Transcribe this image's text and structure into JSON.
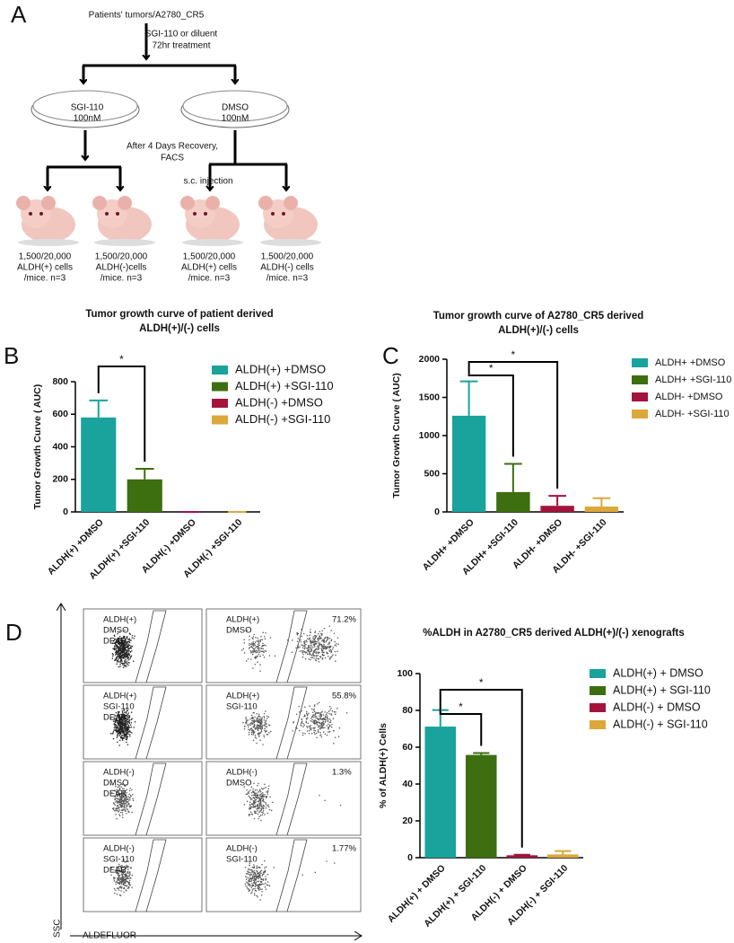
{
  "diagram": {
    "label": "A",
    "source": "Patients' tumors/A2780_CR5",
    "treatment": [
      "SGI-110 or diluent",
      "72hr treatment"
    ],
    "dishes": [
      {
        "drug": "SGI-110",
        "dose": "100nM"
      },
      {
        "drug": "DMSO",
        "dose": "100nM"
      }
    ],
    "recovery": [
      "After 4 Days Recovery,",
      "FACS"
    ],
    "injection": "s.c. injection",
    "mice": [
      [
        "1,500/20,000",
        "ALDH(+) cells",
        "/mice. n=3"
      ],
      [
        "1,500/20,000",
        "ALDH(-)cells",
        "/mice. n=3"
      ],
      [
        "1,500/20,000",
        "ALDH(+) cells",
        "/mice. n=3"
      ],
      [
        "1,500/20,000",
        "ALDH(-) cells",
        "/mice. n=3"
      ]
    ]
  },
  "chart_data": [
    {
      "type": "bar",
      "panel": "B",
      "title": [
        "Tumor growth curve of patient derived",
        "ALDH(+)/(-) cells"
      ],
      "y_label": "Tumor Growth Curve ( AUC)",
      "categories": [
        "ALDH(+) +DMSO",
        "ALDH(+) +SGI-110",
        "ALDH(-) +DMSO",
        "ALDH(-) +SGI-110"
      ],
      "values": [
        580,
        200,
        0,
        0
      ],
      "errors": [
        105,
        65,
        0,
        0
      ],
      "colors": [
        "#19a39c",
        "#3d6e0f",
        "#a4133c",
        "#dba83a"
      ],
      "ylim": [
        0,
        800
      ],
      "yticks": [
        0,
        200,
        400,
        600,
        800
      ],
      "significance": [
        {
          "from": 0,
          "to": 1,
          "label": "*"
        }
      ]
    },
    {
      "type": "bar",
      "panel": "C",
      "title": [
        "Tumor growth curve of A2780_CR5 derived",
        "ALDH(+)/(-) cells"
      ],
      "y_label": "Tumor Growth Curve ( AUC)",
      "categories": [
        "ALDH+ +DMSO",
        "ALDH+ +SGI-110",
        "ALDH- +DMSO",
        "ALDH- +SGI-110"
      ],
      "values": [
        1260,
        260,
        80,
        70
      ],
      "errors": [
        450,
        370,
        130,
        110
      ],
      "colors": [
        "#19a39c",
        "#3d6e0f",
        "#a4133c",
        "#dba83a"
      ],
      "ylim": [
        0,
        2000
      ],
      "yticks": [
        0,
        500,
        1000,
        1500,
        2000
      ],
      "significance": [
        {
          "from": 0,
          "to": 1,
          "label": "*"
        },
        {
          "from": 0,
          "to": 2,
          "label": "*"
        }
      ]
    },
    {
      "type": "bar",
      "title": [
        "%ALDH in A2780_CR5 derived ALDH(+)/(-) xenografts"
      ],
      "y_label": "% of ALDH(+) Cells",
      "categories": [
        "ALDH(+) + DMSO",
        "ALDH(+) + SGI-110",
        "ALDH(-) + DMSO",
        "ALDH(-) + SGI-110"
      ],
      "values": [
        71.2,
        55.8,
        1.3,
        1.77
      ],
      "errors": [
        9,
        1,
        0.3,
        1.8
      ],
      "colors": [
        "#19a39c",
        "#3d6e0f",
        "#a4133c",
        "#dba83a"
      ],
      "ylim": [
        0,
        100
      ],
      "yticks": [
        0,
        20,
        40,
        60,
        80,
        100
      ],
      "significance": [
        {
          "from": 0,
          "to": 1,
          "label": "*"
        },
        {
          "from": 0,
          "to": 2,
          "label": "*"
        }
      ]
    }
  ],
  "facs": {
    "label": "D",
    "y_axis": "SSC",
    "x_axis": "ALDEFLUOR",
    "plots": [
      {
        "label": [
          "ALDH(+)",
          "DMSO",
          "DEAB"
        ]
      },
      {
        "label": [
          "ALDH(+)",
          "DMSO"
        ],
        "percent": "71.2%"
      },
      {
        "label": [
          "ALDH(+)",
          "SGI-110",
          "DEAB"
        ]
      },
      {
        "label": [
          "ALDH(+)",
          "SGI-110"
        ],
        "percent": "55.8%"
      },
      {
        "label": [
          "ALDH(-)",
          "DMSO",
          "DEAB"
        ]
      },
      {
        "label": [
          "ALDH(-)",
          "DMSO"
        ],
        "percent": "1.3%"
      },
      {
        "label": [
          "ALDH(-)",
          "SGI-110",
          "DEAB"
        ]
      },
      {
        "label": [
          "ALDH(-)",
          "SGI-110"
        ],
        "percent": "1.77%"
      }
    ]
  }
}
